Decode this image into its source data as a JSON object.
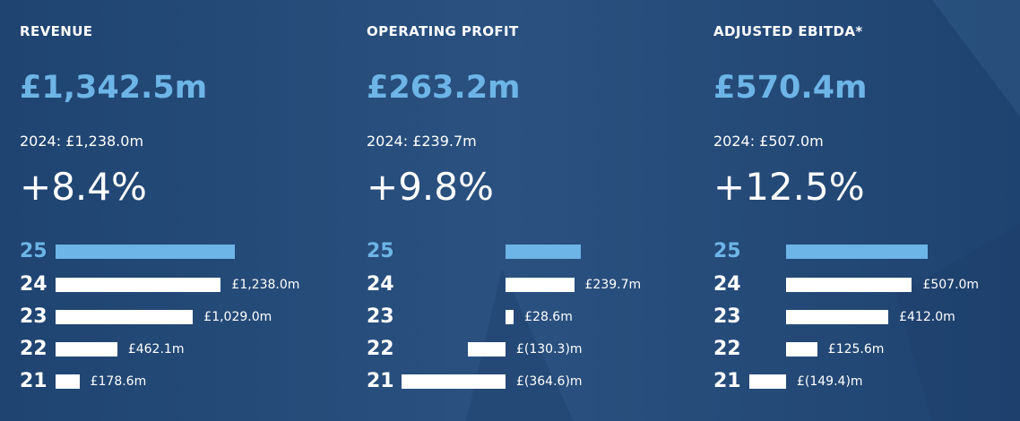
{
  "colors": {
    "background": "#26497a",
    "accent": "#6db5e6",
    "bar": "#ffffff"
  },
  "chart_data": [
    {
      "type": "bar",
      "orientation": "horizontal",
      "title": "REVENUE",
      "headline_value": "£1,342.5m",
      "prior_label": "2024: £1,238.0m",
      "change": "+8.4%",
      "categories": [
        "25",
        "24",
        "23",
        "22",
        "21"
      ],
      "values": [
        1342.5,
        1238.0,
        1029.0,
        462.1,
        178.6
      ],
      "value_labels": [
        "",
        "£1,238.0m",
        "£1,029.0m",
        "£462.1m",
        "£178.6m"
      ],
      "unit": "£m",
      "highlight_index": 0
    },
    {
      "type": "bar",
      "orientation": "horizontal",
      "title": "OPERATING PROFIT",
      "headline_value": "£263.2m",
      "prior_label": "2024: £239.7m",
      "change": "+9.8%",
      "categories": [
        "25",
        "24",
        "23",
        "22",
        "21"
      ],
      "values": [
        263.2,
        239.7,
        28.6,
        -130.3,
        -364.6
      ],
      "value_labels": [
        "",
        "£239.7m",
        "£28.6m",
        "£(130.3)m",
        "£(364.6)m"
      ],
      "unit": "£m",
      "highlight_index": 0
    },
    {
      "type": "bar",
      "orientation": "horizontal",
      "title": "ADJUSTED EBITDA*",
      "headline_value": "£570.4m",
      "prior_label": "2024: £507.0m",
      "change": "+12.5%",
      "categories": [
        "25",
        "24",
        "23",
        "22",
        "21"
      ],
      "values": [
        570.4,
        507.0,
        412.0,
        125.6,
        -149.4
      ],
      "value_labels": [
        "",
        "£507.0m",
        "£412.0m",
        "£125.6m",
        "£(149.4)m"
      ],
      "unit": "£m",
      "highlight_index": 0
    }
  ]
}
